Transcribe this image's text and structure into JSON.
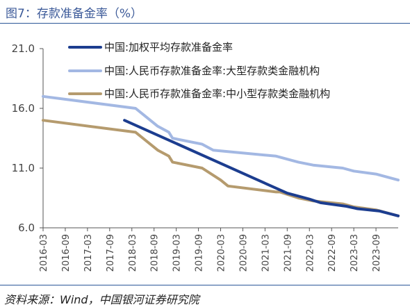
{
  "title": "图7：存款准备金率（%）",
  "source": "资料来源：Wind，中国银河证券研究院",
  "colors": {
    "weighted": "#1c3d8f",
    "large": "#a3b8e3",
    "small": "#b59b6e",
    "axis": "#555555",
    "rule": "#2b5797"
  },
  "chart_data": {
    "type": "line",
    "title": "",
    "xlabel": "",
    "ylabel": "",
    "ylim": [
      6.0,
      21.0
    ],
    "xlim": [
      "2016-03",
      "2024-03"
    ],
    "y_ticks": [
      "21.0",
      "16.0",
      "11.0",
      "6.0"
    ],
    "y_tick_values": [
      21.0,
      16.0,
      11.0,
      6.0
    ],
    "x_ticks": [
      "2016-03",
      "2016-09",
      "2017-03",
      "2017-09",
      "2018-03",
      "2018-09",
      "2019-03",
      "2019-09",
      "2020-03",
      "2020-09",
      "2021-03",
      "2021-09",
      "2022-03",
      "2022-09",
      "2023-03",
      "2023-09"
    ],
    "legend_position": "top-right",
    "grid": false,
    "series": [
      {
        "name": "中国:加权平均存款准备金率",
        "color": "#1c3d8f",
        "points": [
          [
            "2018-01",
            15.0
          ],
          [
            "2021-09",
            8.9
          ],
          [
            "2022-03",
            8.4
          ],
          [
            "2022-06",
            8.1
          ],
          [
            "2023-01",
            7.8
          ],
          [
            "2023-04",
            7.6
          ],
          [
            "2023-10",
            7.4
          ],
          [
            "2024-03",
            7.0
          ]
        ]
      },
      {
        "name": "中国:人民币存款准备金率:大型存款类金融机构",
        "color": "#a3b8e3",
        "points": [
          [
            "2016-03",
            17.0
          ],
          [
            "2018-04",
            16.0
          ],
          [
            "2018-06",
            15.5
          ],
          [
            "2018-10",
            14.5
          ],
          [
            "2019-01",
            14.0
          ],
          [
            "2019-02",
            13.5
          ],
          [
            "2019-10",
            13.0
          ],
          [
            "2020-01",
            12.5
          ],
          [
            "2021-06",
            12.0
          ],
          [
            "2021-12",
            11.5
          ],
          [
            "2022-04",
            11.25
          ],
          [
            "2022-12",
            11.0
          ],
          [
            "2023-03",
            10.75
          ],
          [
            "2023-09",
            10.5
          ],
          [
            "2024-03",
            10.0
          ]
        ]
      },
      {
        "name": "中国:人民币存款准备金率:中小型存款类金融机构",
        "color": "#b59b6e",
        "points": [
          [
            "2016-03",
            15.0
          ],
          [
            "2018-04",
            14.0
          ],
          [
            "2018-06",
            13.5
          ],
          [
            "2018-10",
            12.5
          ],
          [
            "2019-01",
            12.0
          ],
          [
            "2019-02",
            11.5
          ],
          [
            "2019-10",
            11.0
          ],
          [
            "2020-03",
            10.0
          ],
          [
            "2020-05",
            9.5
          ],
          [
            "2021-06",
            9.0
          ],
          [
            "2021-07",
            9.0
          ],
          [
            "2021-12",
            8.5
          ],
          [
            "2022-04",
            8.25
          ],
          [
            "2022-12",
            8.0
          ],
          [
            "2023-03",
            7.75
          ],
          [
            "2023-09",
            7.5
          ],
          [
            "2024-03",
            7.0
          ]
        ]
      }
    ]
  }
}
